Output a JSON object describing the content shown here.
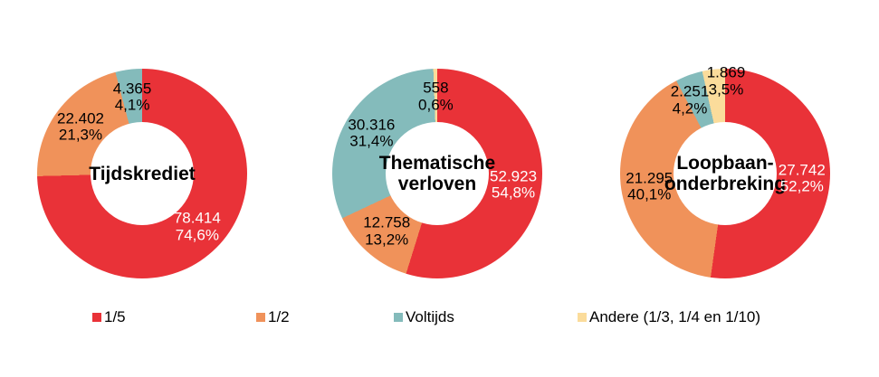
{
  "page": {
    "background": "#ffffff"
  },
  "legend": {
    "items": [
      {
        "label": "1/5",
        "color": "#e93238"
      },
      {
        "label": "1/2",
        "color": "#f0925a"
      },
      {
        "label": "Voltijds",
        "color": "#84bbbb"
      },
      {
        "label": "Andere (1/3, 1/4 en 1/10)",
        "color": "#fbdc9b"
      }
    ]
  },
  "chart_data": [
    {
      "type": "pie",
      "subtype": "donut",
      "title": "Tijdskrediet",
      "title_lines": [
        "Tijdskrediet"
      ],
      "legend_position": "bottom",
      "segments": [
        {
          "name": "1/5",
          "value": 78414,
          "pct": 74.6,
          "value_label": "78.414",
          "pct_label": "74,6%",
          "color": "#e93238",
          "label_color": "#ffffff"
        },
        {
          "name": "1/2",
          "value": 22402,
          "pct": 21.3,
          "value_label": "22.402",
          "pct_label": "21,3%",
          "color": "#f0925a",
          "label_color": "#000000"
        },
        {
          "name": "Voltijds",
          "value": 4365,
          "pct": 4.1,
          "value_label": "4.365",
          "pct_label": "4,1%",
          "color": "#84bbbb",
          "label_color": "#000000"
        }
      ]
    },
    {
      "type": "pie",
      "subtype": "donut",
      "title": "Thematische verloven",
      "title_lines": [
        "Thematische",
        "verloven"
      ],
      "legend_position": "bottom",
      "segments": [
        {
          "name": "1/5",
          "value": 52923,
          "pct": 54.8,
          "value_label": "52.923",
          "pct_label": "54,8%",
          "color": "#e93238",
          "label_color": "#ffffff"
        },
        {
          "name": "1/2",
          "value": 12758,
          "pct": 13.2,
          "value_label": "12.758",
          "pct_label": "13,2%",
          "color": "#f0925a",
          "label_color": "#000000"
        },
        {
          "name": "Voltijds",
          "value": 30316,
          "pct": 31.4,
          "value_label": "30.316",
          "pct_label": "31,4%",
          "color": "#84bbbb",
          "label_color": "#000000"
        },
        {
          "name": "Andere (1/3, 1/4 en 1/10)",
          "value": 558,
          "pct": 0.6,
          "value_label": "558",
          "pct_label": "0,6%",
          "color": "#fbdc9b",
          "label_color": "#000000"
        }
      ]
    },
    {
      "type": "pie",
      "subtype": "donut",
      "title": "Loopbaan-onderbreking",
      "title_lines": [
        "Loopbaan-",
        "onderbreking"
      ],
      "legend_position": "bottom",
      "segments": [
        {
          "name": "1/5",
          "value": 27742,
          "pct": 52.2,
          "value_label": "27.742",
          "pct_label": "52,2%",
          "color": "#e93238",
          "label_color": "#ffffff"
        },
        {
          "name": "1/2",
          "value": 21295,
          "pct": 40.1,
          "value_label": "21.295",
          "pct_label": "40,1%",
          "color": "#f0925a",
          "label_color": "#000000"
        },
        {
          "name": "Voltijds",
          "value": 2251,
          "pct": 4.2,
          "value_label": "2.251",
          "pct_label": "4,2%",
          "color": "#84bbbb",
          "label_color": "#000000"
        },
        {
          "name": "Andere (1/3, 1/4 en 1/10)",
          "value": 1869,
          "pct": 3.5,
          "value_label": "1.869",
          "pct_label": "3,5%",
          "color": "#fbdc9b",
          "label_color": "#000000"
        }
      ]
    }
  ]
}
